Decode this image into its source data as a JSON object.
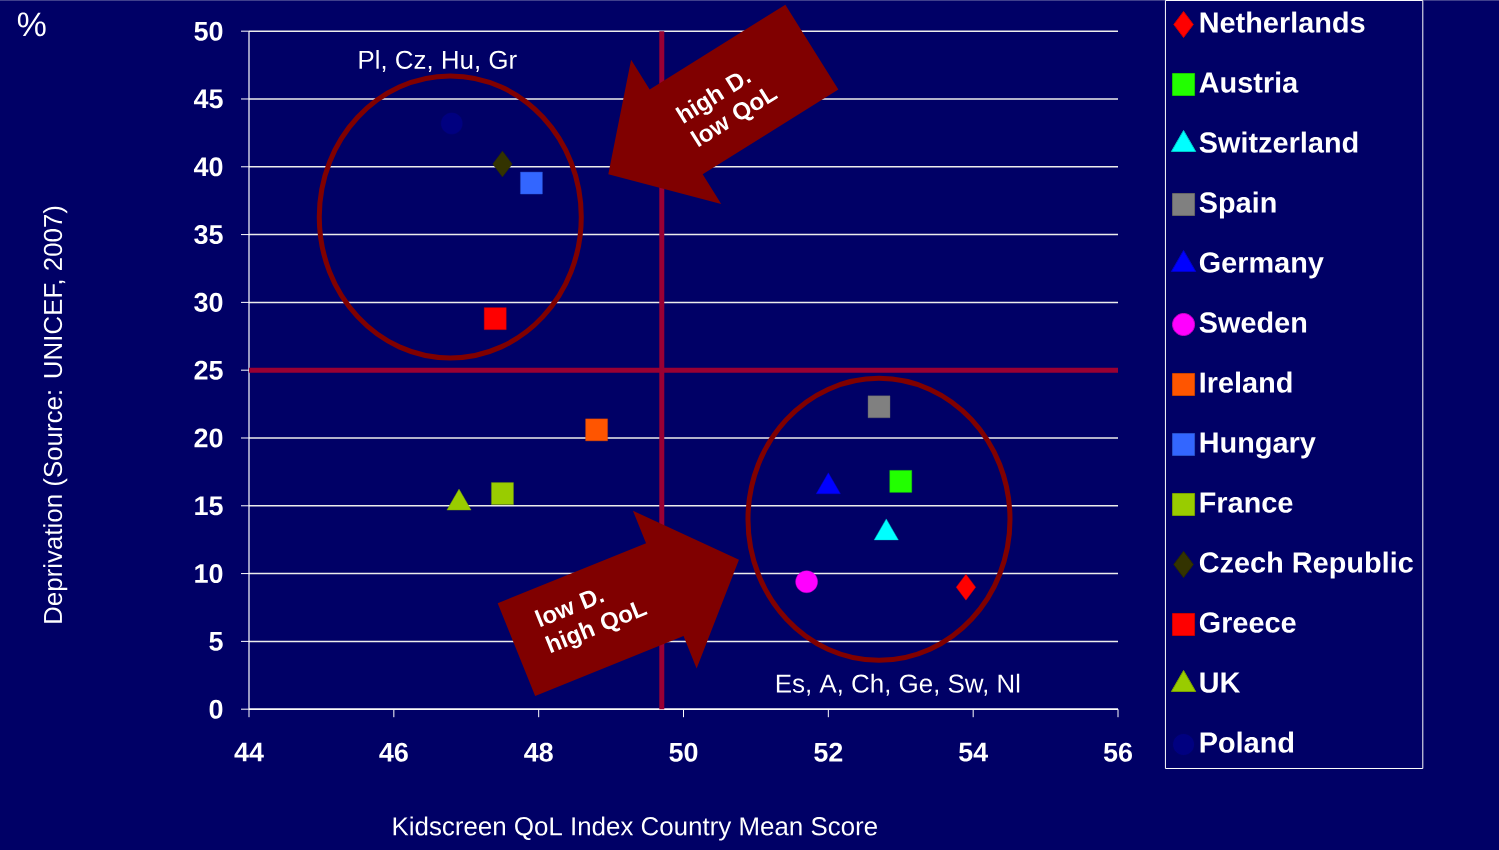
{
  "chart_data": {
    "type": "scatter",
    "xlabel": "Kidscreen QoL Index Country Mean Score",
    "ylabel": "Deprivation (Source: UNICEF, 2007)",
    "xlim": [
      44,
      56
    ],
    "ylim": [
      0,
      50
    ],
    "xticks": [
      44,
      46,
      48,
      50,
      52,
      54,
      56
    ],
    "yticks": [
      0,
      5,
      10,
      15,
      20,
      25,
      30,
      35,
      40,
      45,
      50
    ],
    "grid": "y",
    "legend": "right",
    "ref_lines": [
      {
        "axis": "y",
        "value": 25,
        "color": "#990033"
      },
      {
        "axis": "x",
        "value": 49.7,
        "color": "#990033"
      }
    ],
    "annotations": [
      "%",
      "Pl, Cz, Hu, Gr",
      "Es, A, Ch, Ge, Sw, Nl",
      "high D. low QoL",
      "low D. high QoL"
    ],
    "series": [
      {
        "name": "Netherlands",
        "color": "#ff0000",
        "marker": "diamond",
        "x": [
          53.9
        ],
        "values": [
          9.0
        ]
      },
      {
        "name": "Austria",
        "color": "#22ff00",
        "marker": "square",
        "x": [
          53.0
        ],
        "values": [
          16.8
        ]
      },
      {
        "name": "Switzerland",
        "color": "#00ffff",
        "marker": "triangle",
        "x": [
          52.8
        ],
        "values": [
          13.0
        ]
      },
      {
        "name": "Spain",
        "color": "#808080",
        "marker": "square",
        "x": [
          52.7
        ],
        "values": [
          22.3
        ]
      },
      {
        "name": "Germany",
        "color": "#0000ff",
        "marker": "triangle",
        "x": [
          52.0
        ],
        "values": [
          16.4
        ]
      },
      {
        "name": "Sweden",
        "color": "#ff00ff",
        "marker": "circle",
        "x": [
          51.7
        ],
        "values": [
          9.4
        ]
      },
      {
        "name": "Ireland",
        "color": "#ff5500",
        "marker": "square",
        "x": [
          48.8
        ],
        "values": [
          20.6
        ]
      },
      {
        "name": "Hungary",
        "color": "#3366ff",
        "marker": "square",
        "x": [
          47.9
        ],
        "values": [
          38.8
        ]
      },
      {
        "name": "France",
        "color": "#99cc00",
        "marker": "square",
        "x": [
          47.5
        ],
        "values": [
          15.9
        ]
      },
      {
        "name": "Czech Republic",
        "color": "#333300",
        "marker": "diamond",
        "x": [
          47.5
        ],
        "values": [
          40.2
        ]
      },
      {
        "name": "Greece",
        "color": "#ff0000",
        "marker": "square",
        "x": [
          47.4
        ],
        "values": [
          28.8
        ]
      },
      {
        "name": "UK",
        "color": "#99cc00",
        "marker": "triangle",
        "x": [
          46.9
        ],
        "values": [
          15.2
        ]
      },
      {
        "name": "Poland",
        "color": "#000080",
        "marker": "circle",
        "x": [
          46.8
        ],
        "values": [
          43.2
        ]
      }
    ]
  }
}
